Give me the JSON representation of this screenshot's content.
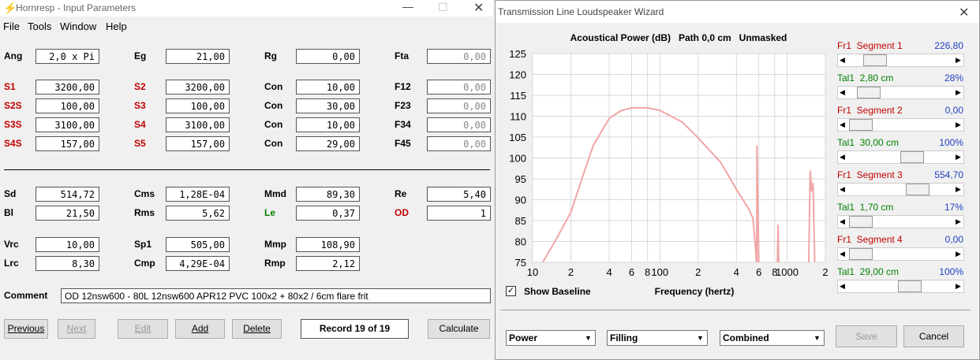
{
  "left_window": {
    "title": "Hornresp - Input Parameters",
    "menu": [
      "File",
      "Tools",
      "Window",
      "Help"
    ],
    "rows": [
      [
        {
          "label": "Ang",
          "value": "2,0 x Pi"
        },
        {
          "label": "Eg",
          "value": "21,00"
        },
        {
          "label": "Rg",
          "value": "0,00"
        },
        {
          "label": "Fta",
          "value": "0,00"
        }
      ],
      [
        {
          "label": "S1",
          "value": "3200,00"
        },
        {
          "label": "S2",
          "value": "3200,00"
        },
        {
          "label": "Con",
          "value": "10,00"
        },
        {
          "label": "F12",
          "value": "0,00"
        }
      ],
      [
        {
          "label": "S2S",
          "value": "100,00"
        },
        {
          "label": "S3",
          "value": "100,00"
        },
        {
          "label": "Con",
          "value": "30,00"
        },
        {
          "label": "F23",
          "value": "0,00"
        }
      ],
      [
        {
          "label": "S3S",
          "value": "3100,00"
        },
        {
          "label": "S4",
          "value": "3100,00"
        },
        {
          "label": "Con",
          "value": "10,00"
        },
        {
          "label": "F34",
          "value": "0,00"
        }
      ],
      [
        {
          "label": "S4S",
          "value": "157,00"
        },
        {
          "label": "S5",
          "value": "157,00"
        },
        {
          "label": "Con",
          "value": "29,00"
        },
        {
          "label": "F45",
          "value": "0,00"
        }
      ],
      [
        {
          "label": "Sd",
          "value": "514,72"
        },
        {
          "label": "Cms",
          "value": "1,28E-04"
        },
        {
          "label": "Mmd",
          "value": "89,30"
        },
        {
          "label": "Re",
          "value": "5,40"
        }
      ],
      [
        {
          "label": "Bl",
          "value": "21,50"
        },
        {
          "label": "Rms",
          "value": "5,62"
        },
        {
          "label": "Le",
          "value": "0,37"
        },
        {
          "label": "OD",
          "value": "1"
        }
      ],
      [
        {
          "label": "Vrc",
          "value": "10,00"
        },
        {
          "label": "Sp1",
          "value": "505,00"
        },
        {
          "label": "Mmp",
          "value": "108,90"
        }
      ],
      [
        {
          "label": "Lrc",
          "value": "8,30"
        },
        {
          "label": "Cmp",
          "value": "4,29E-04"
        },
        {
          "label": "Rmp",
          "value": "2,12"
        }
      ]
    ],
    "comment": {
      "label": "Comment",
      "value": "OD 12nsw600 - 80L 12nsw600 APR12 PVC 100x2 + 80x2 / 6cm flare frit"
    },
    "buttons": [
      "Previous",
      "Next",
      "Edit",
      "Add",
      "Delete"
    ],
    "record": "Record 19 of 19",
    "calculate": "Calculate"
  },
  "wizard": {
    "title": "Transmission Line Loudspeaker Wizard",
    "chart": {
      "type": "line",
      "title": "Acoustical Power (dB)   Path 0,0 cm   Unmasked",
      "x_label": "Frequency (hertz)",
      "log_x": true,
      "grid": true,
      "xlim": [
        10,
        2000
      ],
      "xticks": [
        10,
        {
          "value": 20,
          "label": "2"
        },
        {
          "value": 40,
          "label": "4"
        },
        {
          "value": 60,
          "label": "6"
        },
        {
          "value": 80,
          "label": "8"
        },
        100,
        {
          "value": 200,
          "label": "2"
        },
        {
          "value": 400,
          "label": "4"
        },
        {
          "value": 600,
          "label": "6"
        },
        {
          "value": 800,
          "label": "8"
        },
        1000,
        {
          "value": 2000,
          "label": "2"
        }
      ],
      "ylim": [
        75,
        125
      ],
      "yticks": [
        75,
        80,
        85,
        90,
        95,
        100,
        105,
        110,
        115,
        120,
        125
      ],
      "series": [
        {
          "color": "#f2a5a5",
          "x": [
            12,
            15,
            20,
            25,
            30,
            40,
            50,
            60,
            80,
            100,
            150,
            200,
            300,
            400,
            500,
            540,
            560,
            575,
            577,
            578,
            580,
            585,
            600,
            700,
            840,
            850,
            860,
            1000,
            1480,
            1520,
            1560,
            1600,
            1650
          ],
          "values": [
            75,
            80,
            87,
            96,
            103,
            109.5,
            111.4,
            112,
            112,
            111.4,
            108.6,
            104.8,
            99,
            92.5,
            87.8,
            85.5,
            80,
            75,
            null,
            75,
            103,
            95,
            75,
            null,
            75,
            84,
            75,
            null,
            75,
            97,
            92,
            94,
            75
          ]
        }
      ]
    },
    "show_baseline": "Show Baseline",
    "sliders": [
      {
        "label": "Fr1  Segment 1",
        "value": "226,80"
      },
      {
        "label": "Tal1  2,80 cm",
        "value": "28%"
      },
      {
        "label": "Fr1  Segment 2",
        "value": "0,00"
      },
      {
        "label": "Tal1  30,00 cm",
        "value": "100%"
      },
      {
        "label": "Fr1  Segment 3",
        "value": "554,70"
      },
      {
        "label": "Tal1  1,70 cm",
        "value": "17%"
      },
      {
        "label": "Fr1  Segment 4",
        "value": "0,00"
      },
      {
        "label": "Tal1  29,00 cm",
        "value": "100%"
      }
    ],
    "dropdowns": [
      "Power",
      "Filling",
      "Combined"
    ],
    "buttons": [
      "Save",
      "Cancel"
    ]
  }
}
